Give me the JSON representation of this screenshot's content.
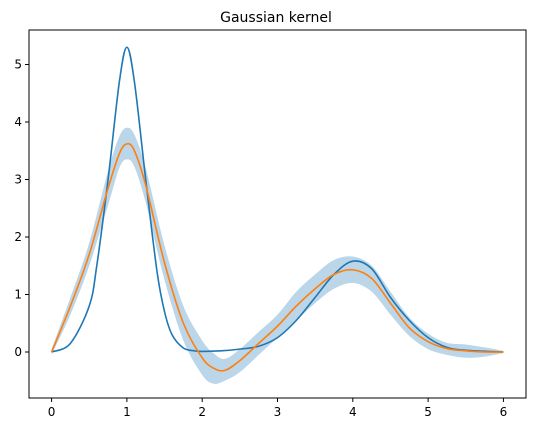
{
  "chart_data": {
    "type": "line",
    "title": "Gaussian kernel",
    "xlabel": "",
    "ylabel": "",
    "xlim": [
      -0.3,
      6.3
    ],
    "ylim": [
      -0.8,
      5.6
    ],
    "xticks": [
      0,
      1,
      2,
      3,
      4,
      5,
      6
    ],
    "yticks": [
      0,
      1,
      2,
      3,
      4,
      5
    ],
    "grid": false,
    "legend": "none",
    "colors": {
      "true_function": "#1f77b4",
      "prediction": "#ff7f0e",
      "confidence_band": "#1f77b4"
    },
    "band_opacity": 0.3,
    "series": [
      {
        "kind": "line",
        "color_key": "true_function",
        "x": [
          0,
          0.25,
          0.5,
          0.6,
          0.75,
          0.9,
          1.0,
          1.1,
          1.25,
          1.4,
          1.5,
          1.6,
          1.75,
          1.9,
          2.0,
          2.25,
          2.5,
          2.75,
          3.0,
          3.25,
          3.5,
          3.75,
          4.0,
          4.25,
          4.5,
          4.75,
          5.0,
          5.25,
          5.5,
          6.0
        ],
        "y": [
          0.0,
          0.15,
          0.8,
          1.5,
          3.0,
          4.7,
          5.3,
          4.7,
          3.0,
          1.4,
          0.7,
          0.3,
          0.07,
          0.02,
          0.01,
          0.02,
          0.05,
          0.1,
          0.25,
          0.55,
          0.95,
          1.35,
          1.58,
          1.45,
          0.95,
          0.55,
          0.25,
          0.08,
          0.03,
          0.0
        ]
      },
      {
        "kind": "line",
        "color_key": "prediction",
        "x": [
          0,
          0.25,
          0.5,
          0.75,
          0.9,
          1.0,
          1.1,
          1.25,
          1.5,
          1.75,
          2.0,
          2.15,
          2.3,
          2.5,
          2.75,
          3.0,
          3.25,
          3.5,
          3.75,
          4.0,
          4.25,
          4.5,
          4.75,
          5.0,
          5.25,
          5.5,
          5.75,
          6.0
        ],
        "y": [
          0.0,
          0.8,
          1.7,
          2.85,
          3.45,
          3.62,
          3.5,
          2.9,
          1.55,
          0.5,
          -0.1,
          -0.28,
          -0.32,
          -0.15,
          0.15,
          0.45,
          0.8,
          1.1,
          1.35,
          1.43,
          1.28,
          0.85,
          0.42,
          0.18,
          0.06,
          0.02,
          0.0,
          0.0
        ]
      }
    ],
    "band": {
      "color_key": "confidence_band",
      "x": [
        0,
        0.25,
        0.5,
        0.75,
        0.9,
        1.0,
        1.1,
        1.25,
        1.5,
        1.75,
        2.0,
        2.15,
        2.3,
        2.5,
        2.75,
        3.0,
        3.25,
        3.5,
        3.75,
        4.0,
        4.25,
        4.5,
        4.75,
        5.0,
        5.25,
        5.5,
        5.75,
        6.0
      ],
      "lower": [
        -0.05,
        0.65,
        1.5,
        2.55,
        3.2,
        3.35,
        3.22,
        2.6,
        1.25,
        0.2,
        -0.4,
        -0.55,
        -0.5,
        -0.35,
        -0.05,
        0.25,
        0.55,
        0.85,
        1.1,
        1.2,
        1.05,
        0.65,
        0.28,
        0.05,
        -0.05,
        -0.1,
        -0.08,
        -0.02
      ],
      "upper": [
        0.05,
        0.95,
        1.9,
        3.15,
        3.75,
        3.9,
        3.78,
        3.2,
        1.85,
        0.8,
        0.2,
        -0.02,
        -0.12,
        0.05,
        0.35,
        0.65,
        1.05,
        1.35,
        1.6,
        1.66,
        1.5,
        1.05,
        0.6,
        0.32,
        0.16,
        0.13,
        0.08,
        0.02
      ]
    }
  }
}
